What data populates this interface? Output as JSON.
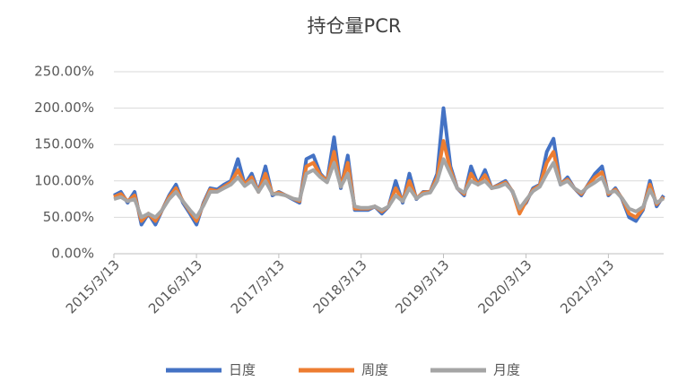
{
  "chart_data": {
    "type": "line",
    "title": "持仓量PCR",
    "x": [
      "2015/3/13",
      "2015/4/13",
      "2015/5/13",
      "2015/6/13",
      "2015/7/13",
      "2015/8/13",
      "2015/9/13",
      "2015/10/13",
      "2015/11/13",
      "2015/12/13",
      "2016/1/13",
      "2016/2/13",
      "2016/3/13",
      "2016/4/13",
      "2016/5/13",
      "2016/6/13",
      "2016/7/13",
      "2016/8/13",
      "2016/9/13",
      "2016/10/13",
      "2016/11/13",
      "2016/12/13",
      "2017/1/13",
      "2017/2/13",
      "2017/3/13",
      "2017/4/13",
      "2017/5/13",
      "2017/6/13",
      "2017/7/13",
      "2017/8/13",
      "2017/9/13",
      "2017/10/13",
      "2017/11/13",
      "2017/12/13",
      "2018/1/13",
      "2018/2/13",
      "2018/3/13",
      "2018/4/13",
      "2018/5/13",
      "2018/6/13",
      "2018/7/13",
      "2018/8/13",
      "2018/9/13",
      "2018/10/13",
      "2018/11/13",
      "2018/12/13",
      "2019/1/13",
      "2019/2/13",
      "2019/3/13",
      "2019/4/13",
      "2019/5/13",
      "2019/6/13",
      "2019/7/13",
      "2019/8/13",
      "2019/9/13",
      "2019/10/13",
      "2019/11/13",
      "2019/12/13",
      "2020/1/13",
      "2020/2/13",
      "2020/3/13",
      "2020/4/13",
      "2020/5/13",
      "2020/6/13",
      "2020/7/13",
      "2020/8/13",
      "2020/9/13",
      "2020/10/13",
      "2020/11/13",
      "2020/12/13",
      "2021/1/13",
      "2021/2/13",
      "2021/3/13",
      "2021/4/13",
      "2021/5/13",
      "2021/6/13",
      "2021/7/13",
      "2021/8/13",
      "2021/9/13",
      "2021/10/13",
      "2021/11/13"
    ],
    "series": [
      {
        "name": "日度",
        "color": "#4472c4",
        "values": [
          80,
          85,
          70,
          85,
          40,
          55,
          40,
          60,
          80,
          95,
          70,
          55,
          40,
          70,
          90,
          88,
          95,
          100,
          130,
          95,
          110,
          85,
          120,
          80,
          85,
          80,
          75,
          70,
          130,
          135,
          110,
          100,
          160,
          90,
          135,
          60,
          60,
          60,
          65,
          55,
          65,
          100,
          70,
          110,
          75,
          85,
          85,
          110,
          200,
          120,
          90,
          80,
          120,
          95,
          115,
          90,
          95,
          100,
          85,
          60,
          70,
          90,
          95,
          140,
          158,
          95,
          105,
          90,
          80,
          95,
          110,
          120,
          80,
          90,
          75,
          50,
          45,
          60,
          100,
          65,
          80
        ]
      },
      {
        "name": "周度",
        "color": "#ed7d31",
        "values": [
          78,
          82,
          72,
          80,
          45,
          55,
          45,
          60,
          78,
          90,
          72,
          58,
          45,
          68,
          88,
          86,
          92,
          98,
          115,
          95,
          105,
          85,
          110,
          82,
          84,
          80,
          76,
          72,
          120,
          125,
          108,
          100,
          140,
          92,
          125,
          62,
          62,
          62,
          65,
          58,
          65,
          90,
          72,
          100,
          76,
          84,
          85,
          105,
          155,
          115,
          90,
          82,
          110,
          95,
          108,
          90,
          94,
          98,
          86,
          55,
          72,
          88,
          94,
          125,
          140,
          96,
          102,
          90,
          82,
          94,
          105,
          112,
          82,
          88,
          76,
          55,
          50,
          62,
          95,
          68,
          78
        ]
      },
      {
        "name": "月度",
        "color": "#a5a5a5",
        "values": [
          75,
          78,
          72,
          75,
          50,
          55,
          50,
          60,
          75,
          85,
          72,
          60,
          50,
          66,
          85,
          85,
          90,
          95,
          105,
          93,
          100,
          85,
          100,
          82,
          82,
          80,
          76,
          74,
          110,
          115,
          105,
          98,
          125,
          92,
          110,
          65,
          63,
          63,
          65,
          60,
          65,
          80,
          72,
          90,
          76,
          82,
          84,
          100,
          130,
          110,
          90,
          84,
          100,
          95,
          100,
          90,
          92,
          96,
          86,
          62,
          74,
          86,
          92,
          110,
          125,
          95,
          100,
          90,
          84,
          92,
          98,
          105,
          84,
          86,
          76,
          62,
          58,
          64,
          88,
          70,
          76
        ]
      }
    ],
    "xlim": [
      "2015/3/13",
      "2021/11/13"
    ],
    "xticks": [
      "2015/3/13",
      "2016/3/13",
      "2017/3/13",
      "2018/3/13",
      "2019/3/13",
      "2020/3/13",
      "2021/3/13"
    ],
    "ylim": [
      0,
      250
    ],
    "yticks": [
      {
        "value": 0,
        "label": "0.00%"
      },
      {
        "value": 50,
        "label": "50.00%"
      },
      {
        "value": 100,
        "label": "100.00%"
      },
      {
        "value": 150,
        "label": "150.00%"
      },
      {
        "value": 200,
        "label": "200.00%"
      },
      {
        "value": 250,
        "label": "250.00%"
      }
    ],
    "grid": true
  }
}
